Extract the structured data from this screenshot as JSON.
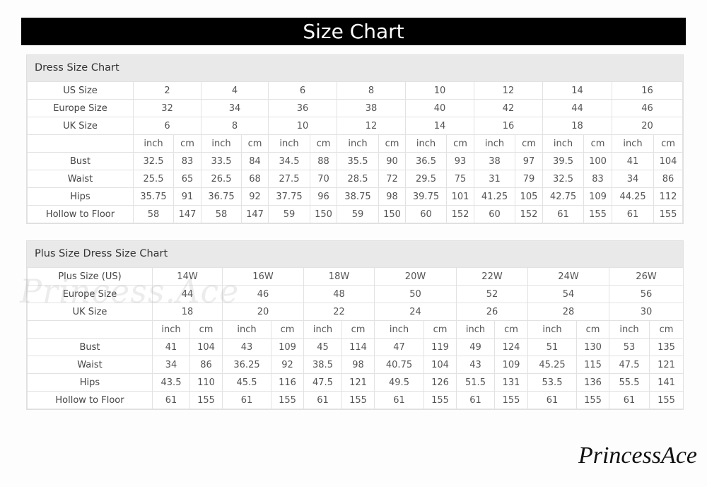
{
  "title": "Size Chart",
  "watermark": "PrincessAce",
  "tables": [
    {
      "heading": "Dress Size Chart",
      "size_rows": [
        {
          "label": "US Size",
          "values": [
            "2",
            "4",
            "6",
            "8",
            "10",
            "12",
            "14",
            "16"
          ]
        },
        {
          "label": "Europe Size",
          "values": [
            "32",
            "34",
            "36",
            "38",
            "40",
            "42",
            "44",
            "46"
          ]
        },
        {
          "label": "UK Size",
          "values": [
            "6",
            "8",
            "10",
            "12",
            "14",
            "16",
            "18",
            "20"
          ]
        }
      ],
      "unit_labels": [
        "inch",
        "cm"
      ],
      "measure_rows": [
        {
          "label": "Bust",
          "values": [
            "32.5",
            "83",
            "33.5",
            "84",
            "34.5",
            "88",
            "35.5",
            "90",
            "36.5",
            "93",
            "38",
            "97",
            "39.5",
            "100",
            "41",
            "104"
          ]
        },
        {
          "label": "Waist",
          "values": [
            "25.5",
            "65",
            "26.5",
            "68",
            "27.5",
            "70",
            "28.5",
            "72",
            "29.5",
            "75",
            "31",
            "79",
            "32.5",
            "83",
            "34",
            "86"
          ]
        },
        {
          "label": "Hips",
          "values": [
            "35.75",
            "91",
            "36.75",
            "92",
            "37.75",
            "96",
            "38.75",
            "98",
            "39.75",
            "101",
            "41.25",
            "105",
            "42.75",
            "109",
            "44.25",
            "112"
          ]
        },
        {
          "label": "Hollow to Floor",
          "values": [
            "58",
            "147",
            "58",
            "147",
            "59",
            "150",
            "59",
            "150",
            "60",
            "152",
            "60",
            "152",
            "61",
            "155",
            "61",
            "155"
          ]
        }
      ]
    },
    {
      "heading": "Plus Size Dress Size Chart",
      "size_rows": [
        {
          "label": "Plus Size (US)",
          "values": [
            "14W",
            "16W",
            "18W",
            "20W",
            "22W",
            "24W",
            "26W"
          ]
        },
        {
          "label": "Europe Size",
          "values": [
            "44",
            "46",
            "48",
            "50",
            "52",
            "54",
            "56"
          ]
        },
        {
          "label": "UK Size",
          "values": [
            "18",
            "20",
            "22",
            "24",
            "26",
            "28",
            "30"
          ]
        }
      ],
      "unit_labels": [
        "inch",
        "cm"
      ],
      "measure_rows": [
        {
          "label": "Bust",
          "values": [
            "41",
            "104",
            "43",
            "109",
            "45",
            "114",
            "47",
            "119",
            "49",
            "124",
            "51",
            "130",
            "53",
            "135"
          ]
        },
        {
          "label": "Waist",
          "values": [
            "34",
            "86",
            "36.25",
            "92",
            "38.5",
            "98",
            "40.75",
            "104",
            "43",
            "109",
            "45.25",
            "115",
            "47.5",
            "121"
          ]
        },
        {
          "label": "Hips",
          "values": [
            "43.5",
            "110",
            "45.5",
            "116",
            "47.5",
            "121",
            "49.5",
            "126",
            "51.5",
            "131",
            "53.5",
            "136",
            "55.5",
            "141"
          ]
        },
        {
          "label": "Hollow to Floor",
          "values": [
            "61",
            "155",
            "61",
            "155",
            "61",
            "155",
            "61",
            "155",
            "61",
            "155",
            "61",
            "155",
            "61",
            "155"
          ]
        }
      ]
    }
  ]
}
